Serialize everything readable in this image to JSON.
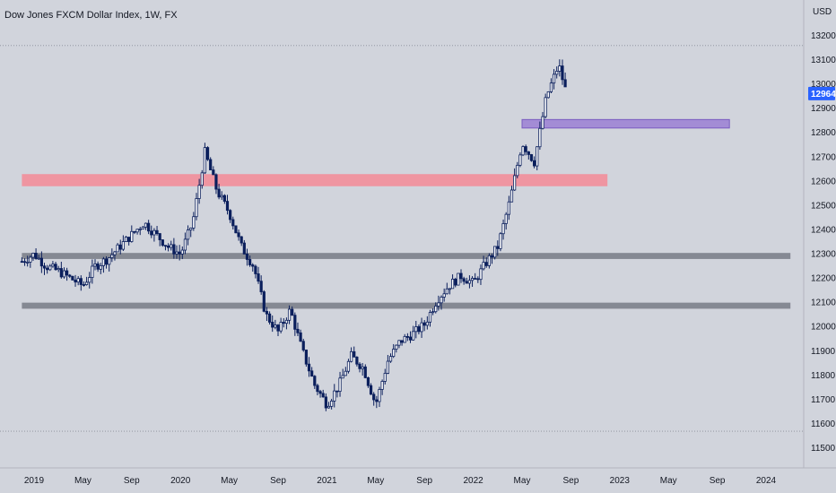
{
  "title": "Dow Jones FXCM Dollar Index, 1W, FX",
  "currency": "USD",
  "last_price": "12964",
  "colors": {
    "background": "#d1d4dc",
    "candle": "#0b1f5c",
    "price_tag": "#2962ff",
    "zone_red": "#f48a97",
    "zone_purple": "#9b7fd4",
    "zone_gray": "#787b86"
  },
  "chart_data": {
    "type": "candlestick",
    "title": "Dow Jones FXCM Dollar Index, 1W, FX",
    "ylabel": "USD",
    "ylim": [
      11430,
      13270
    ],
    "x_ticks": [
      "2019",
      "May",
      "Sep",
      "2020",
      "May",
      "Sep",
      "2021",
      "May",
      "Sep",
      "2022",
      "May",
      "Sep",
      "2023",
      "May",
      "Sep",
      "2024"
    ],
    "y_ticks": [
      13200,
      13100,
      13000,
      12900,
      12800,
      12700,
      12600,
      12500,
      12400,
      12300,
      12200,
      12100,
      12000,
      11900,
      11800,
      11700,
      11600,
      11500
    ],
    "dotted_levels": [
      13160,
      11570
    ],
    "zones": [
      {
        "name": "purple",
        "low": 12820,
        "high": 12855,
        "start": "2022-05",
        "end": "2023-10"
      },
      {
        "name": "red",
        "low": 12580,
        "high": 12630,
        "start": "2018-12",
        "end": "2022-12"
      },
      {
        "name": "gray",
        "low": 12280,
        "high": 12305,
        "start": "2018-12",
        "end": "2024-03"
      },
      {
        "name": "gray",
        "low": 12075,
        "high": 12100,
        "start": "2018-12",
        "end": "2024-03"
      }
    ],
    "anchors": [
      [
        "2018-12",
        12270
      ],
      [
        "2019-01",
        12300
      ],
      [
        "2019-02",
        12250
      ],
      [
        "2019-03",
        12230
      ],
      [
        "2019-04",
        12200
      ],
      [
        "2019-05",
        12170
      ],
      [
        "2019-06",
        12250
      ],
      [
        "2019-07",
        12280
      ],
      [
        "2019-08",
        12330
      ],
      [
        "2019-09",
        12380
      ],
      [
        "2019-10",
        12430
      ],
      [
        "2019-11",
        12380
      ],
      [
        "2019-12",
        12330
      ],
      [
        "2020-01",
        12300
      ],
      [
        "2020-02",
        12430
      ],
      [
        "2020-03",
        12720
      ],
      [
        "2020-04",
        12560
      ],
      [
        "2020-05",
        12470
      ],
      [
        "2020-06",
        12330
      ],
      [
        "2020-07",
        12250
      ],
      [
        "2020-08",
        12050
      ],
      [
        "2020-09",
        11980
      ],
      [
        "2020-10",
        12070
      ],
      [
        "2020-11",
        11900
      ],
      [
        "2020-12",
        11760
      ],
      [
        "2021-01",
        11680
      ],
      [
        "2021-02",
        11760
      ],
      [
        "2021-03",
        11880
      ],
      [
        "2021-04",
        11830
      ],
      [
        "2021-05",
        11680
      ],
      [
        "2021-06",
        11860
      ],
      [
        "2021-07",
        11940
      ],
      [
        "2021-08",
        11970
      ],
      [
        "2021-09",
        12010
      ],
      [
        "2021-10",
        12110
      ],
      [
        "2021-11",
        12170
      ],
      [
        "2021-12",
        12210
      ],
      [
        "2022-01",
        12180
      ],
      [
        "2022-02",
        12260
      ],
      [
        "2022-03",
        12330
      ],
      [
        "2022-04",
        12520
      ],
      [
        "2022-05",
        12760
      ],
      [
        "2022-06",
        12680
      ],
      [
        "2022-07",
        12950
      ],
      [
        "2022-08",
        13080
      ],
      [
        "2022-08-20",
        12964
      ]
    ]
  }
}
